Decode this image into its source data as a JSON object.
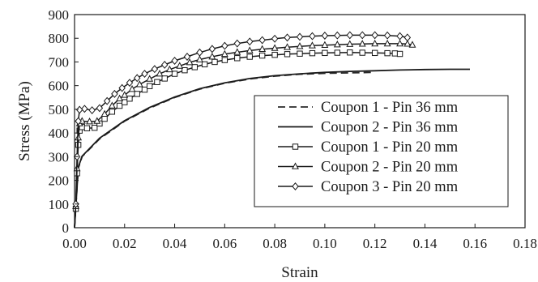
{
  "chart_data": {
    "type": "line",
    "title": "",
    "xlabel": "Strain",
    "ylabel": "Stress (MPa)",
    "xlim": [
      0,
      0.18
    ],
    "ylim": [
      0,
      900
    ],
    "x_ticks": [
      "0.00",
      "0.02",
      "0.04",
      "0.06",
      "0.08",
      "0.10",
      "0.12",
      "0.14",
      "0.16",
      "0.18"
    ],
    "y_ticks": [
      "0",
      "100",
      "200",
      "300",
      "400",
      "500",
      "600",
      "700",
      "800",
      "900"
    ],
    "grid": "none",
    "legend_position": "center-right",
    "series": [
      {
        "name": "Coupon 1 - Pin 36 mm",
        "line_style": "dashed",
        "marker": "none",
        "color": "#2a2a2a",
        "points": [
          [
            0,
            0
          ],
          [
            0.0015,
            250
          ],
          [
            0.003,
            300
          ],
          [
            0.01,
            375
          ],
          [
            0.02,
            450
          ],
          [
            0.03,
            505
          ],
          [
            0.04,
            550
          ],
          [
            0.05,
            585
          ],
          [
            0.06,
            610
          ],
          [
            0.07,
            628
          ],
          [
            0.08,
            640
          ],
          [
            0.09,
            648
          ],
          [
            0.1,
            652
          ],
          [
            0.11,
            654
          ],
          [
            0.12,
            656
          ]
        ]
      },
      {
        "name": "Coupon 2 - Pin 36 mm",
        "line_style": "solid",
        "marker": "none",
        "color": "#1a1a1a",
        "points": [
          [
            0,
            0
          ],
          [
            0.0015,
            255
          ],
          [
            0.003,
            302
          ],
          [
            0.01,
            378
          ],
          [
            0.02,
            452
          ],
          [
            0.03,
            508
          ],
          [
            0.04,
            552
          ],
          [
            0.05,
            587
          ],
          [
            0.06,
            612
          ],
          [
            0.07,
            630
          ],
          [
            0.08,
            642
          ],
          [
            0.09,
            650
          ],
          [
            0.1,
            656
          ],
          [
            0.11,
            660
          ],
          [
            0.12,
            663
          ],
          [
            0.13,
            666
          ],
          [
            0.14,
            668
          ],
          [
            0.15,
            669
          ],
          [
            0.158,
            669
          ]
        ]
      },
      {
        "name": "Coupon 1 - Pin 20 mm",
        "line_style": "solid",
        "marker": "square",
        "color": "#1a1a1a",
        "points": [
          [
            0,
            0
          ],
          [
            0.0005,
            80
          ],
          [
            0.001,
            230
          ],
          [
            0.0015,
            350
          ],
          [
            0.002,
            410
          ],
          [
            0.003,
            425
          ],
          [
            0.005,
            420
          ],
          [
            0.008,
            422
          ],
          [
            0.01,
            440
          ],
          [
            0.012,
            460
          ],
          [
            0.015,
            490
          ],
          [
            0.018,
            515
          ],
          [
            0.02,
            530
          ],
          [
            0.022,
            545
          ],
          [
            0.025,
            565
          ],
          [
            0.028,
            583
          ],
          [
            0.03,
            598
          ],
          [
            0.033,
            615
          ],
          [
            0.036,
            630
          ],
          [
            0.04,
            650
          ],
          [
            0.044,
            665
          ],
          [
            0.048,
            678
          ],
          [
            0.052,
            690
          ],
          [
            0.056,
            700
          ],
          [
            0.06,
            708
          ],
          [
            0.065,
            716
          ],
          [
            0.07,
            722
          ],
          [
            0.075,
            727
          ],
          [
            0.08,
            730
          ],
          [
            0.085,
            733
          ],
          [
            0.09,
            735
          ],
          [
            0.095,
            737
          ],
          [
            0.1,
            738
          ],
          [
            0.105,
            739
          ],
          [
            0.11,
            740
          ],
          [
            0.115,
            739
          ],
          [
            0.12,
            738
          ],
          [
            0.125,
            737
          ],
          [
            0.128,
            736
          ],
          [
            0.13,
            734
          ]
        ]
      },
      {
        "name": "Coupon 2 - Pin 20 mm",
        "line_style": "solid",
        "marker": "triangle",
        "color": "#1a1a1a",
        "points": [
          [
            0,
            0
          ],
          [
            0.0005,
            90
          ],
          [
            0.001,
            250
          ],
          [
            0.0015,
            380
          ],
          [
            0.002,
            440
          ],
          [
            0.003,
            450
          ],
          [
            0.006,
            448
          ],
          [
            0.009,
            450
          ],
          [
            0.012,
            480
          ],
          [
            0.015,
            515
          ],
          [
            0.018,
            545
          ],
          [
            0.02,
            560
          ],
          [
            0.023,
            585
          ],
          [
            0.026,
            605
          ],
          [
            0.03,
            628
          ],
          [
            0.034,
            650
          ],
          [
            0.038,
            668
          ],
          [
            0.042,
            683
          ],
          [
            0.046,
            698
          ],
          [
            0.05,
            710
          ],
          [
            0.055,
            722
          ],
          [
            0.06,
            733
          ],
          [
            0.065,
            741
          ],
          [
            0.07,
            748
          ],
          [
            0.075,
            754
          ],
          [
            0.08,
            758
          ],
          [
            0.085,
            762
          ],
          [
            0.09,
            766
          ],
          [
            0.095,
            769
          ],
          [
            0.1,
            771
          ],
          [
            0.105,
            773
          ],
          [
            0.11,
            775
          ],
          [
            0.115,
            776
          ],
          [
            0.12,
            777
          ],
          [
            0.125,
            777
          ],
          [
            0.13,
            777
          ],
          [
            0.133,
            776
          ],
          [
            0.135,
            772
          ]
        ]
      },
      {
        "name": "Coupon 3 - Pin 20 mm",
        "line_style": "solid",
        "marker": "diamond",
        "color": "#1a1a1a",
        "points": [
          [
            0,
            0
          ],
          [
            0.0005,
            100
          ],
          [
            0.001,
            300
          ],
          [
            0.0015,
            450
          ],
          [
            0.002,
            498
          ],
          [
            0.004,
            502
          ],
          [
            0.007,
            496
          ],
          [
            0.01,
            505
          ],
          [
            0.013,
            535
          ],
          [
            0.016,
            565
          ],
          [
            0.019,
            590
          ],
          [
            0.022,
            612
          ],
          [
            0.025,
            632
          ],
          [
            0.028,
            650
          ],
          [
            0.032,
            670
          ],
          [
            0.036,
            688
          ],
          [
            0.04,
            705
          ],
          [
            0.045,
            722
          ],
          [
            0.05,
            740
          ],
          [
            0.055,
            755
          ],
          [
            0.06,
            768
          ],
          [
            0.065,
            778
          ],
          [
            0.07,
            786
          ],
          [
            0.075,
            792
          ],
          [
            0.08,
            798
          ],
          [
            0.085,
            803
          ],
          [
            0.09,
            806
          ],
          [
            0.095,
            809
          ],
          [
            0.1,
            811
          ],
          [
            0.105,
            812
          ],
          [
            0.11,
            813
          ],
          [
            0.115,
            813
          ],
          [
            0.12,
            813
          ],
          [
            0.125,
            812
          ],
          [
            0.13,
            809
          ],
          [
            0.133,
            803
          ]
        ]
      }
    ]
  }
}
